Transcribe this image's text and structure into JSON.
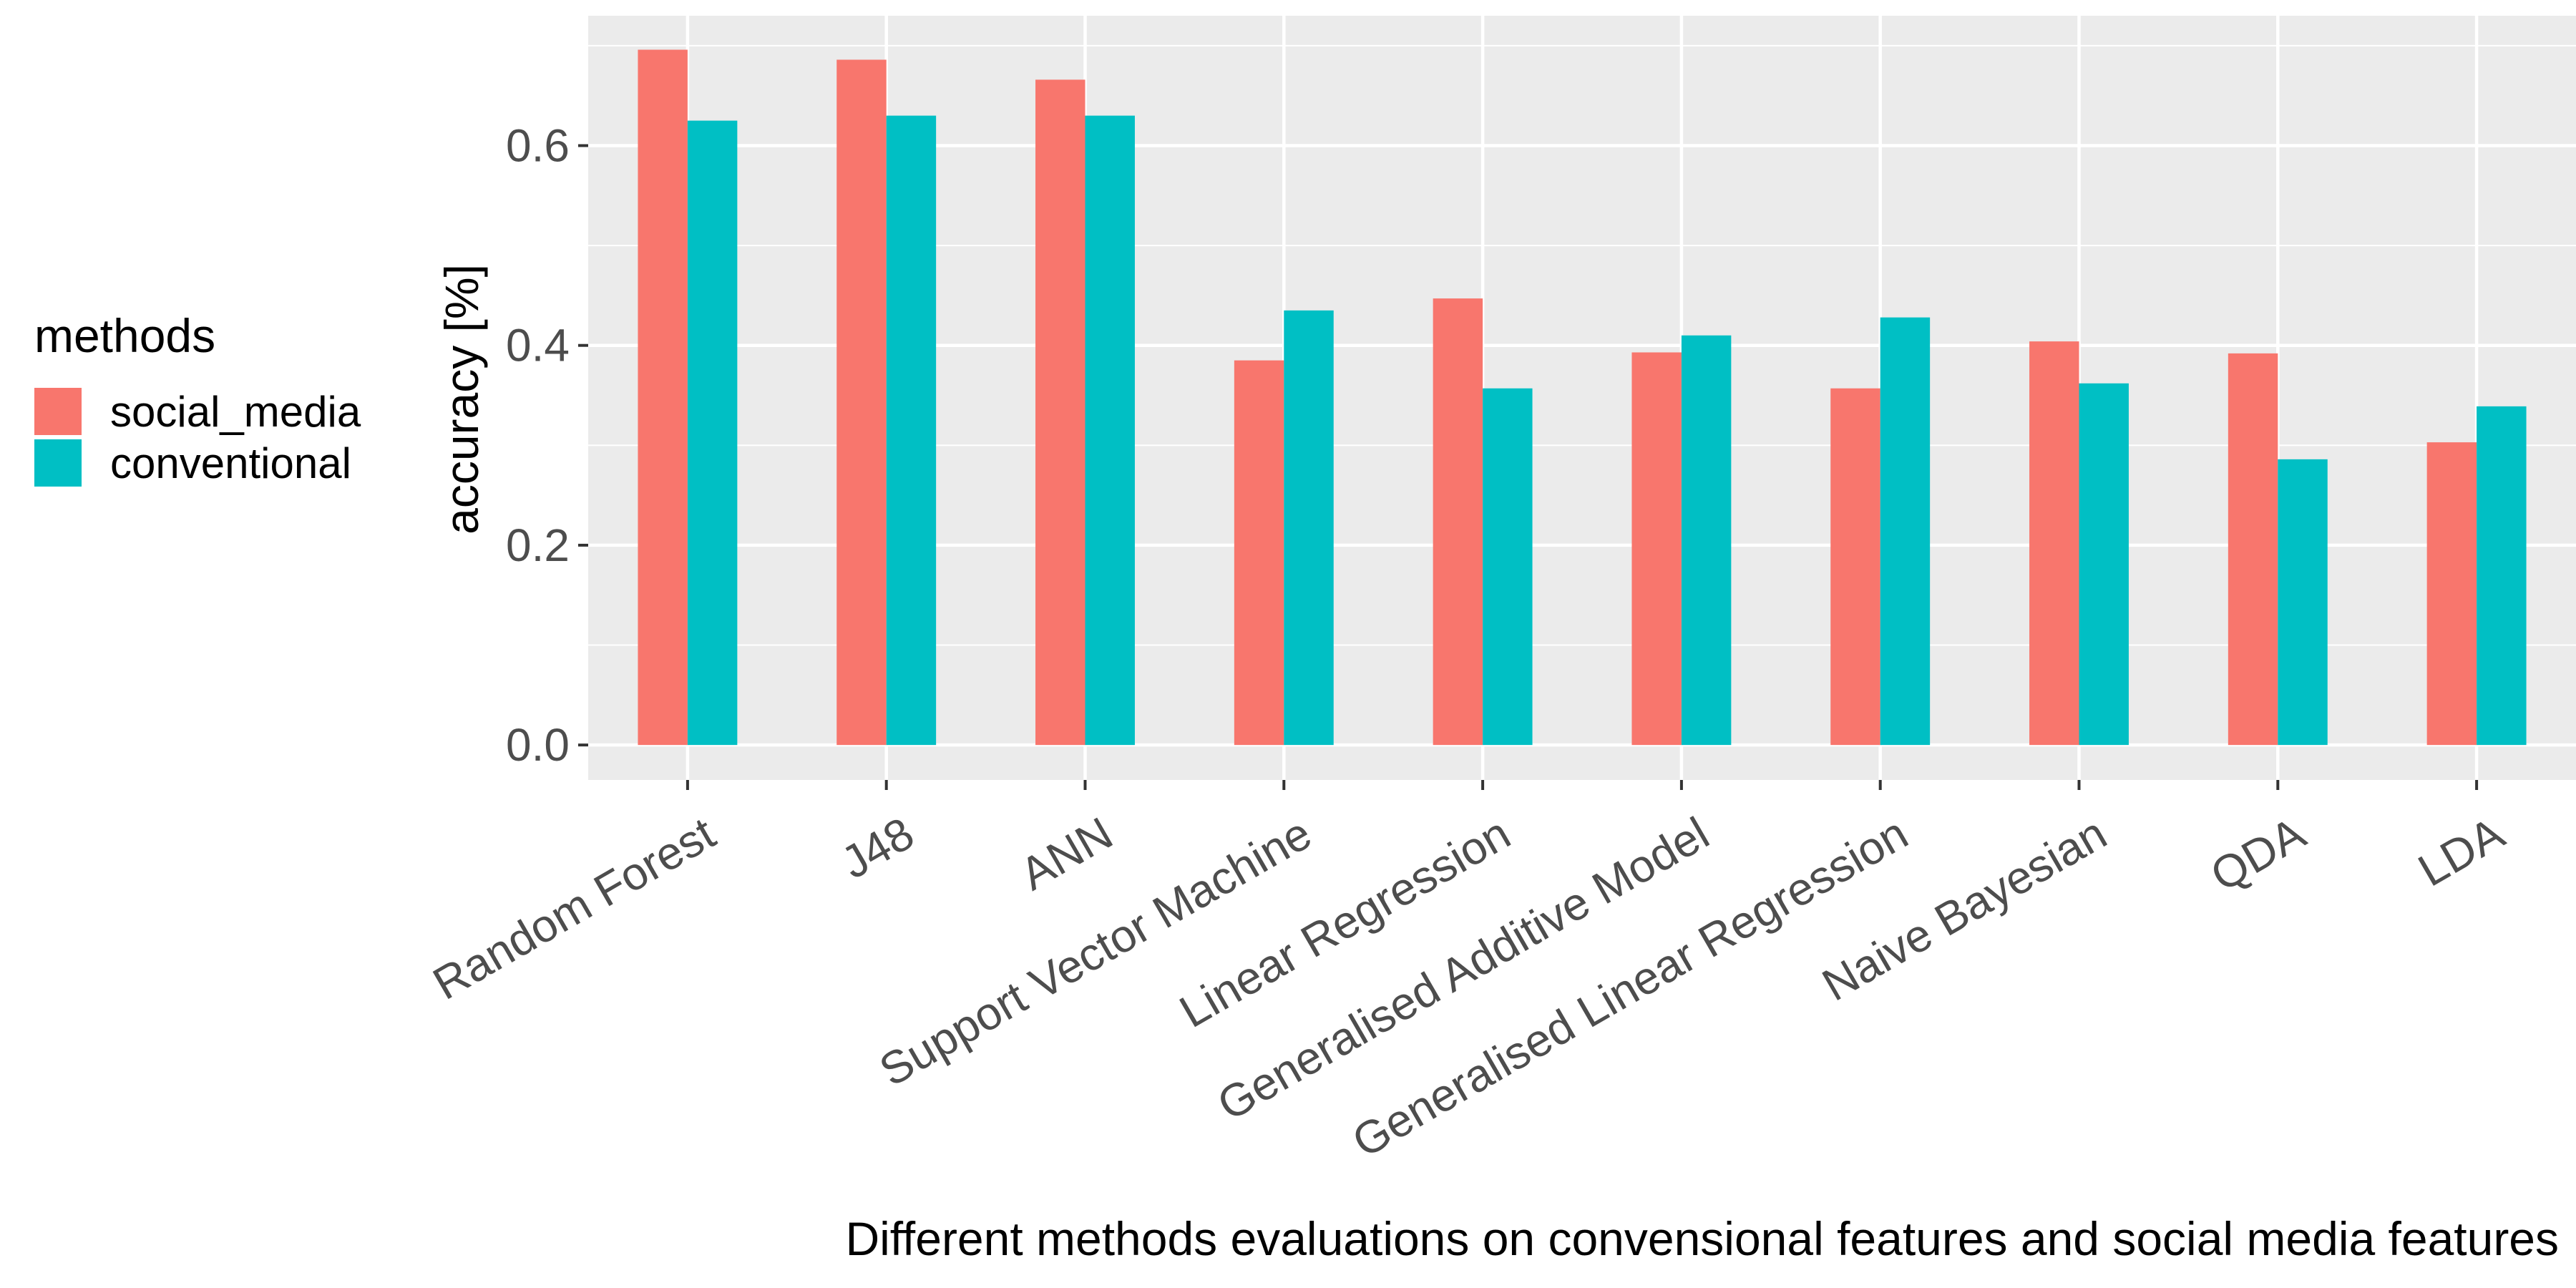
{
  "chart_data": {
    "type": "bar",
    "categories": [
      "Random Forest",
      "J48",
      "ANN",
      "Support Vector Machine",
      "Linear Regression",
      "Generalised Additive Model",
      "Generalised Linear Regression",
      "Naive Bayesian",
      "QDA",
      "LDA"
    ],
    "series": [
      {
        "name": "social_media",
        "color": "#F8766D",
        "values": [
          0.696,
          0.686,
          0.666,
          0.385,
          0.447,
          0.393,
          0.357,
          0.404,
          0.392,
          0.303
        ]
      },
      {
        "name": "conventional",
        "color": "#00BFC4",
        "values": [
          0.625,
          0.63,
          0.63,
          0.435,
          0.357,
          0.41,
          0.428,
          0.362,
          0.286,
          0.339
        ]
      }
    ],
    "xlabel": "Different methods evaluations on convensional features and  social media features",
    "ylabel": "accuracy [%]",
    "ylim": [
      -0.035,
      0.73
    ],
    "yticks": [
      0.0,
      0.2,
      0.4,
      0.6
    ],
    "ytick_labels": [
      "0.0",
      "0.2",
      "0.4",
      "0.6"
    ],
    "legend": {
      "title": "methods",
      "placement": "left"
    },
    "grid": true,
    "panel_background": "#EBEBEB"
  }
}
